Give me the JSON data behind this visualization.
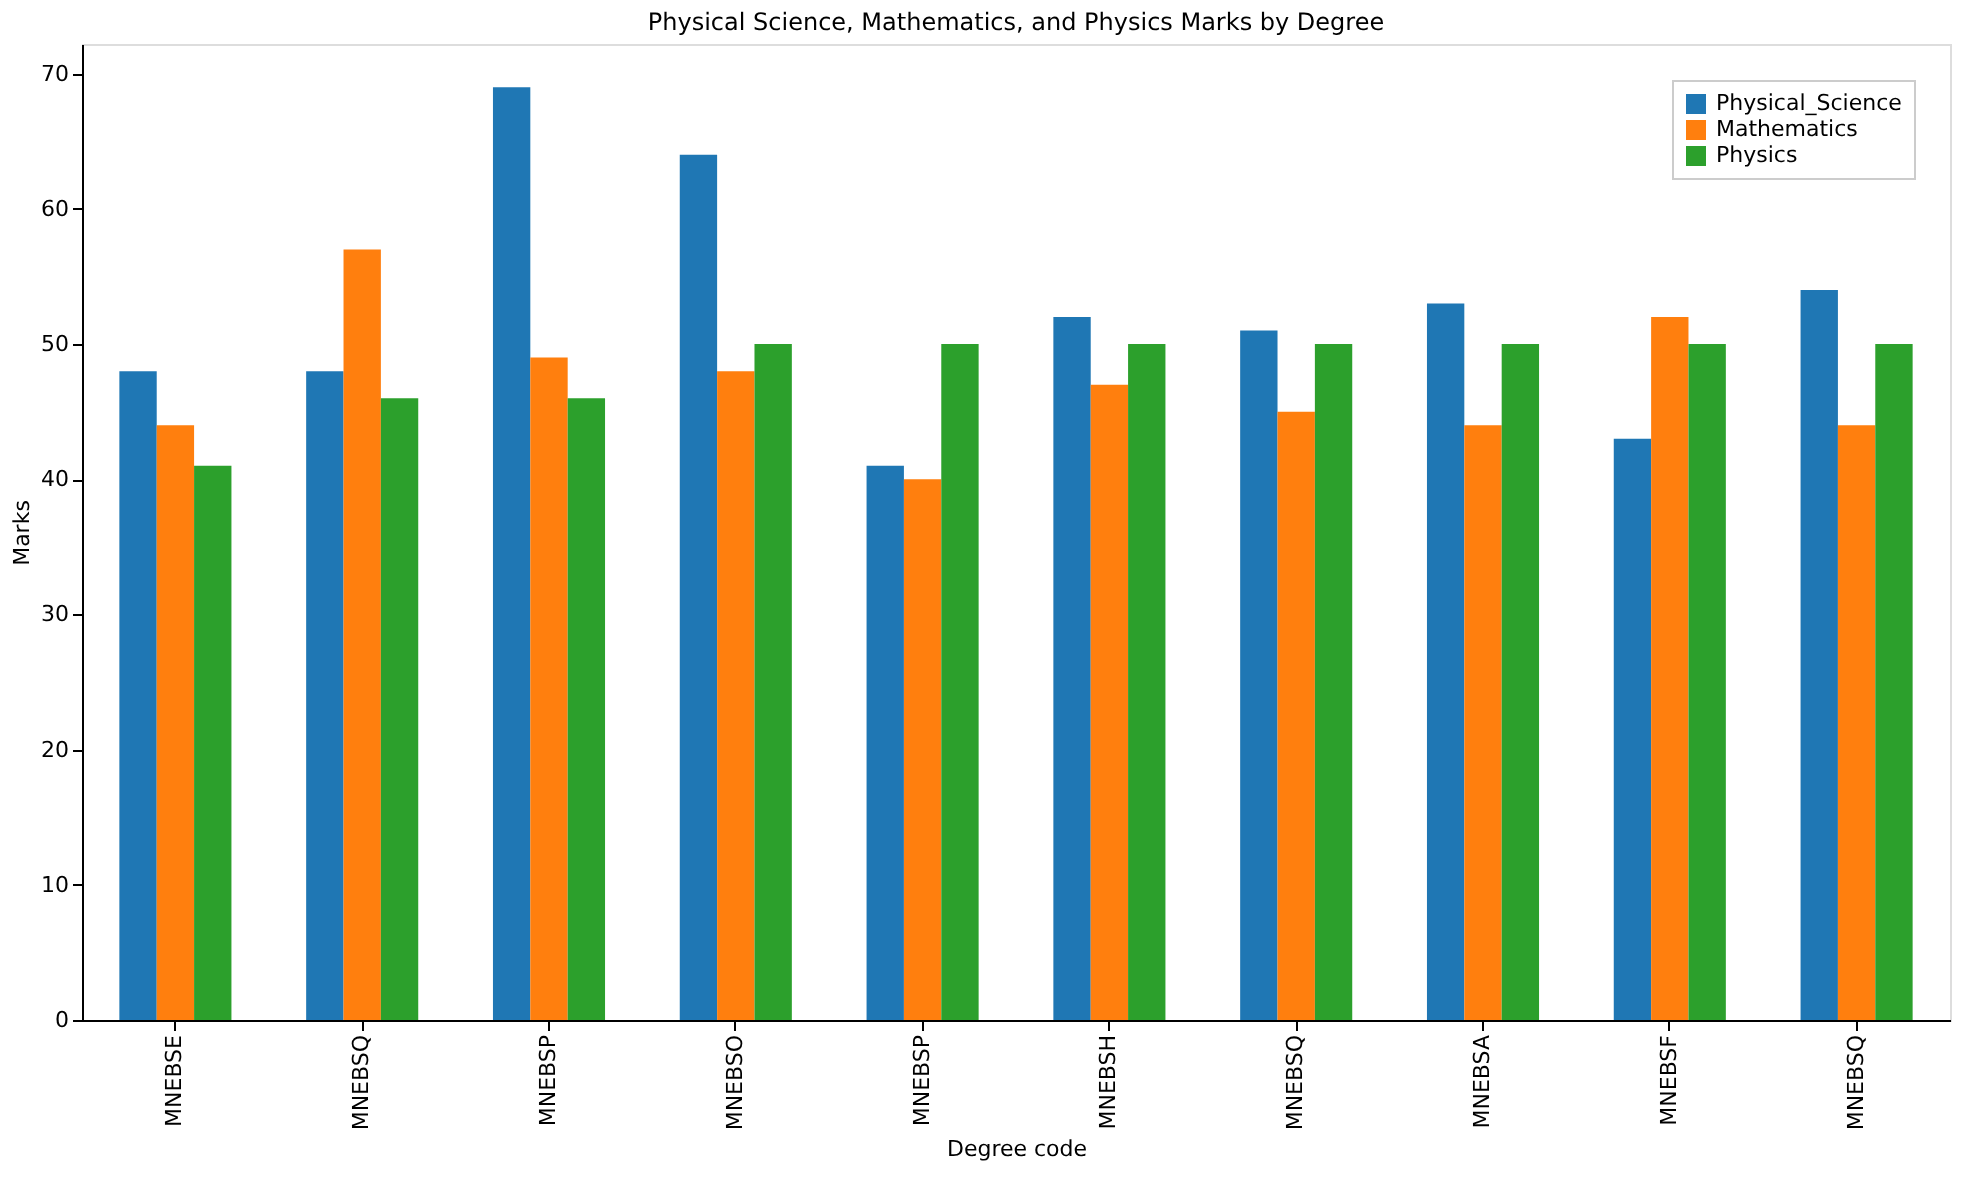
{
  "chart_data": {
    "type": "bar",
    "title": "Physical Science, Mathematics, and Physics Marks by Degree",
    "xlabel": "Degree code",
    "ylabel": "Marks",
    "categories": [
      "MNEBSE",
      "MNEBSQ",
      "MNEBSP",
      "MNEBSO",
      "MNEBSP",
      "MNEBSH",
      "MNEBSQ",
      "MNEBSA",
      "MNEBSF",
      "MNEBSQ"
    ],
    "series": [
      {
        "name": "Physical_Science",
        "color": "#1f77b4",
        "values": [
          48,
          48,
          69,
          64,
          41,
          52,
          51,
          53,
          43,
          54
        ]
      },
      {
        "name": "Mathematics",
        "color": "#ff7f0e",
        "values": [
          44,
          57,
          49,
          48,
          40,
          47,
          45,
          44,
          52,
          44
        ]
      },
      {
        "name": "Physics",
        "color": "#2ca02c",
        "values": [
          41,
          46,
          46,
          50,
          50,
          50,
          50,
          50,
          50,
          50
        ]
      }
    ],
    "ylim": [
      0,
      72.2
    ],
    "yticks": [
      0,
      10,
      20,
      30,
      40,
      50,
      60,
      70
    ],
    "grid": false,
    "legend": "top right"
  }
}
